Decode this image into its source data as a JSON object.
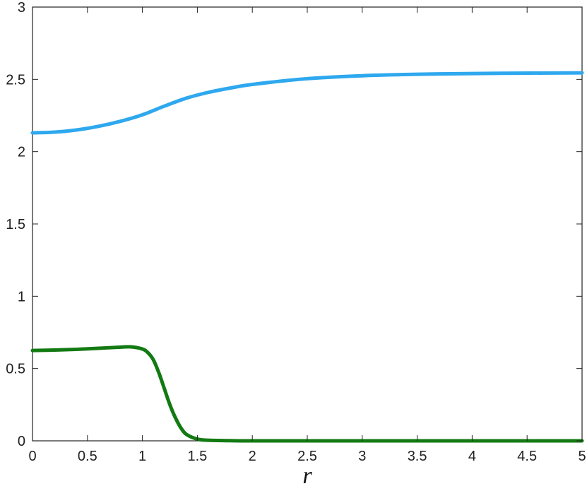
{
  "chart_data": {
    "type": "line",
    "title": "",
    "xlabel": "r",
    "ylabel": "",
    "xlim": [
      0,
      5
    ],
    "ylim": [
      0,
      3
    ],
    "x_ticks": [
      0,
      0.5,
      1,
      1.5,
      2,
      2.5,
      3,
      3.5,
      4,
      4.5,
      5
    ],
    "x_tick_labels": [
      "0",
      "0.5",
      "1",
      "1.5",
      "2",
      "2.5",
      "3",
      "3.5",
      "4",
      "4.5",
      "5"
    ],
    "y_ticks": [
      0,
      0.5,
      1,
      1.5,
      2,
      2.5,
      3
    ],
    "y_tick_labels": [
      "0",
      "0.5",
      "1",
      "1.5",
      "2",
      "2.5",
      "3"
    ],
    "grid": false,
    "legend": "none",
    "series": [
      {
        "color": "#2ea8ee",
        "x": [
          0,
          0.2,
          0.4,
          0.6,
          0.8,
          1.0,
          1.2,
          1.4,
          1.6,
          1.8,
          2.0,
          2.5,
          3.0,
          3.5,
          4.0,
          4.5,
          5.0
        ],
        "y": [
          2.13,
          2.135,
          2.15,
          2.175,
          2.21,
          2.255,
          2.315,
          2.37,
          2.41,
          2.44,
          2.465,
          2.505,
          2.525,
          2.535,
          2.54,
          2.543,
          2.545
        ]
      },
      {
        "color": "#137a13",
        "x": [
          0,
          0.2,
          0.4,
          0.6,
          0.8,
          0.9,
          1.0,
          1.05,
          1.1,
          1.15,
          1.2,
          1.25,
          1.3,
          1.35,
          1.4,
          1.5,
          1.6,
          1.8,
          2.0,
          3.0,
          4.0,
          5.0
        ],
        "y": [
          0.625,
          0.628,
          0.633,
          0.64,
          0.648,
          0.65,
          0.635,
          0.61,
          0.56,
          0.47,
          0.36,
          0.25,
          0.16,
          0.09,
          0.045,
          0.012,
          0.004,
          0.001,
          0.0,
          0.0,
          0.0,
          0.0
        ]
      }
    ]
  }
}
